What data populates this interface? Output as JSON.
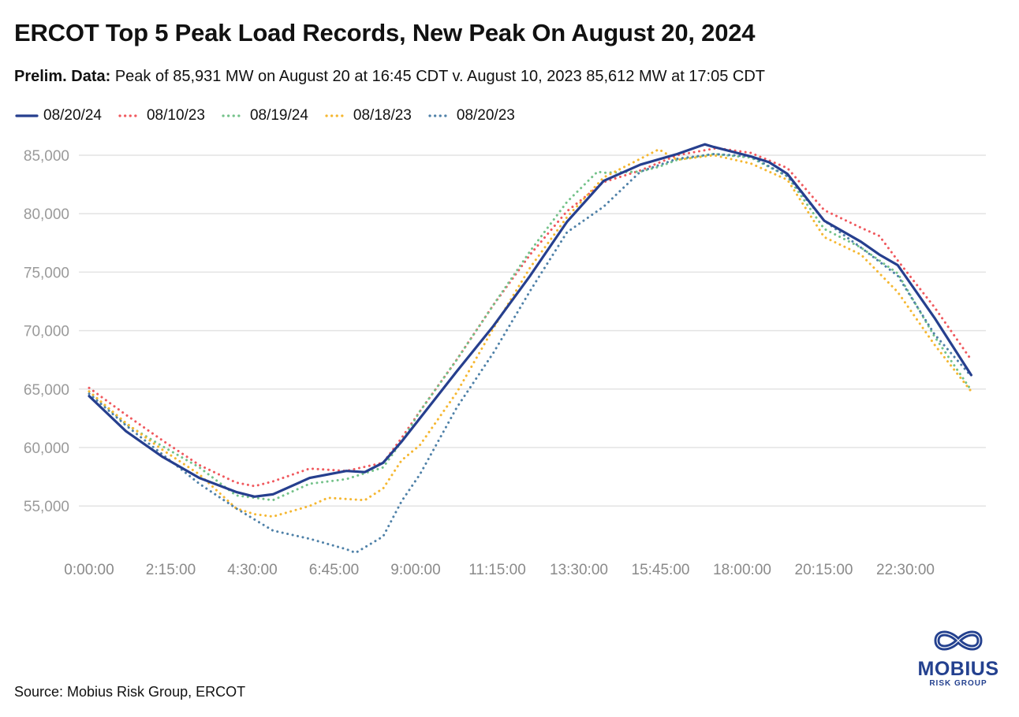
{
  "title": "ERCOT Top 5 Peak Load Records, New Peak On August 20, 2024",
  "subtitle": {
    "bold": "Prelim. Data:",
    "text": " Peak of 85,931 MW on August 20 at 16:45 CDT v. August 10, 2023 85,612 MW at 17:05 CDT"
  },
  "source": "Source: Mobius Risk Group, ERCOT",
  "logo": {
    "name": "MOBIUS",
    "sub": "RISK GROUP"
  },
  "chart_data": {
    "type": "line",
    "title": "ERCOT Top 5 Peak Load Records, New Peak On August 20, 2024",
    "xlabel": "",
    "ylabel": "",
    "x_tick_labels": [
      "0:00:00",
      "2:15:00",
      "4:30:00",
      "6:45:00",
      "9:00:00",
      "11:15:00",
      "13:30:00",
      "15:45:00",
      "18:00:00",
      "20:15:00",
      "22:30:00"
    ],
    "y_tick_labels": [
      "55,000",
      "60,000",
      "65,000",
      "70,000",
      "75,000",
      "80,000",
      "85,000"
    ],
    "y_ticks": [
      55000,
      60000,
      65000,
      70000,
      75000,
      80000,
      85000
    ],
    "ylim": [
      50000,
      86500
    ],
    "grid": true,
    "legend": "top-left",
    "series": [
      {
        "name": "08/20/24",
        "color": "#263f8e",
        "style": "solid",
        "points": [
          [
            "0:00",
            64400
          ],
          [
            "1:00",
            61400
          ],
          [
            "2:00",
            59200
          ],
          [
            "3:00",
            57400
          ],
          [
            "4:00",
            56200
          ],
          [
            "4:30",
            55800
          ],
          [
            "5:00",
            56000
          ],
          [
            "6:00",
            57400
          ],
          [
            "7:00",
            58000
          ],
          [
            "7:30",
            57900
          ],
          [
            "8:00",
            58700
          ],
          [
            "8:30",
            60500
          ],
          [
            "9:00",
            62500
          ],
          [
            "10:00",
            66500
          ],
          [
            "11:00",
            70400
          ],
          [
            "12:00",
            74700
          ],
          [
            "13:00",
            79300
          ],
          [
            "14:00",
            82800
          ],
          [
            "15:00",
            84200
          ],
          [
            "16:00",
            85100
          ],
          [
            "16:45",
            85931
          ],
          [
            "17:00",
            85700
          ],
          [
            "18:00",
            84900
          ],
          [
            "18:30",
            84400
          ],
          [
            "19:00",
            83400
          ],
          [
            "20:00",
            79400
          ],
          [
            "21:00",
            77600
          ],
          [
            "21:30",
            76500
          ],
          [
            "22:00",
            75600
          ],
          [
            "23:00",
            71100
          ],
          [
            "24:00",
            66200
          ]
        ]
      },
      {
        "name": "08/10/23",
        "color": "#f0595e",
        "style": "dotted",
        "points": [
          [
            "0:00",
            65100
          ],
          [
            "1:00",
            62800
          ],
          [
            "2:00",
            60600
          ],
          [
            "3:00",
            58500
          ],
          [
            "4:00",
            57000
          ],
          [
            "4:30",
            56700
          ],
          [
            "5:00",
            57100
          ],
          [
            "6:00",
            58200
          ],
          [
            "7:00",
            58000
          ],
          [
            "8:00",
            58700
          ],
          [
            "8:30",
            60800
          ],
          [
            "9:00",
            63100
          ],
          [
            "10:00",
            67500
          ],
          [
            "11:00",
            72200
          ],
          [
            "12:00",
            76500
          ],
          [
            "13:00",
            80200
          ],
          [
            "14:00",
            82700
          ],
          [
            "15:00",
            83700
          ],
          [
            "16:00",
            85000
          ],
          [
            "17:05",
            85612
          ],
          [
            "18:00",
            85200
          ],
          [
            "19:00",
            83900
          ],
          [
            "20:00",
            80300
          ],
          [
            "21:00",
            78800
          ],
          [
            "21:30",
            78100
          ],
          [
            "22:00",
            76000
          ],
          [
            "23:00",
            72000
          ],
          [
            "24:00",
            67500
          ]
        ]
      },
      {
        "name": "08/19/24",
        "color": "#74c28a",
        "style": "dotted",
        "points": [
          [
            "0:00",
            64800
          ],
          [
            "1:00",
            62000
          ],
          [
            "2:00",
            60100
          ],
          [
            "3:00",
            58300
          ],
          [
            "4:00",
            55900
          ],
          [
            "5:00",
            55500
          ],
          [
            "6:00",
            56900
          ],
          [
            "7:00",
            57300
          ],
          [
            "8:00",
            58300
          ],
          [
            "8:30",
            60500
          ],
          [
            "9:00",
            63100
          ],
          [
            "10:00",
            67500
          ],
          [
            "11:00",
            72200
          ],
          [
            "12:00",
            76800
          ],
          [
            "13:00",
            81000
          ],
          [
            "13:50",
            83600
          ],
          [
            "14:00",
            83500
          ],
          [
            "15:00",
            83600
          ],
          [
            "15:30",
            84000
          ],
          [
            "16:00",
            84600
          ],
          [
            "17:00",
            85100
          ],
          [
            "18:00",
            84800
          ],
          [
            "19:00",
            83200
          ],
          [
            "20:00",
            78700
          ],
          [
            "21:00",
            77100
          ],
          [
            "22:00",
            74900
          ],
          [
            "23:00",
            69500
          ],
          [
            "24:00",
            64900
          ]
        ]
      },
      {
        "name": "08/18/23",
        "color": "#f5b731",
        "style": "dotted",
        "points": [
          [
            "0:00",
            64800
          ],
          [
            "1:00",
            62100
          ],
          [
            "2:00",
            59800
          ],
          [
            "3:00",
            57700
          ],
          [
            "4:00",
            54800
          ],
          [
            "4:30",
            54300
          ],
          [
            "5:00",
            54100
          ],
          [
            "6:00",
            55000
          ],
          [
            "6:30",
            55700
          ],
          [
            "7:00",
            55600
          ],
          [
            "7:30",
            55500
          ],
          [
            "8:00",
            56500
          ],
          [
            "8:30",
            58900
          ],
          [
            "9:00",
            60200
          ],
          [
            "10:00",
            64700
          ],
          [
            "11:00",
            70200
          ],
          [
            "12:00",
            75400
          ],
          [
            "13:00",
            79700
          ],
          [
            "14:00",
            83100
          ],
          [
            "15:00",
            84700
          ],
          [
            "15:30",
            85500
          ],
          [
            "16:00",
            84600
          ],
          [
            "17:00",
            85000
          ],
          [
            "18:00",
            84300
          ],
          [
            "19:00",
            82900
          ],
          [
            "20:00",
            78000
          ],
          [
            "21:00",
            76500
          ],
          [
            "22:00",
            73300
          ],
          [
            "23:00",
            68800
          ],
          [
            "24:00",
            64800
          ]
        ]
      },
      {
        "name": "08/20/23",
        "color": "#4f81a8",
        "style": "dotted",
        "points": [
          [
            "0:00",
            64600
          ],
          [
            "1:00",
            61900
          ],
          [
            "2:00",
            59400
          ],
          [
            "3:00",
            56900
          ],
          [
            "4:00",
            54800
          ],
          [
            "5:00",
            52900
          ],
          [
            "6:00",
            52200
          ],
          [
            "7:00",
            51300
          ],
          [
            "7:15",
            51000
          ],
          [
            "8:00",
            52400
          ],
          [
            "8:30",
            55400
          ],
          [
            "9:00",
            57700
          ],
          [
            "10:00",
            63400
          ],
          [
            "11:00",
            68100
          ],
          [
            "12:00",
            73400
          ],
          [
            "13:00",
            78400
          ],
          [
            "14:00",
            80600
          ],
          [
            "15:00",
            83600
          ],
          [
            "16:00",
            84700
          ],
          [
            "17:00",
            85100
          ],
          [
            "18:00",
            84900
          ],
          [
            "19:00",
            83200
          ],
          [
            "20:00",
            79400
          ],
          [
            "21:00",
            77100
          ],
          [
            "22:00",
            74700
          ],
          [
            "23:00",
            69700
          ],
          [
            "24:00",
            66100
          ]
        ]
      }
    ]
  }
}
